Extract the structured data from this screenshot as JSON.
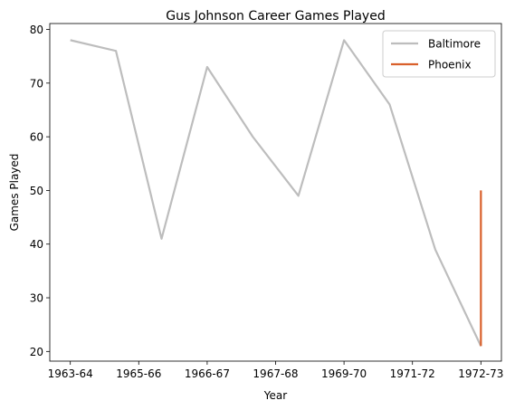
{
  "chart_data": {
    "type": "line",
    "title": "Gus Johnson  Career Games Played",
    "xlabel": "Year",
    "ylabel": "Games Played",
    "x": [
      0,
      1,
      2,
      3,
      4,
      5,
      6,
      7,
      8,
      9
    ],
    "x_tick_positions": [
      0,
      1.5,
      3,
      4.5,
      6,
      7.5,
      9
    ],
    "x_tick_labels": [
      "1963-64",
      "1965-66",
      "1966-67",
      "1967-68",
      "1969-70",
      "1971-72",
      "1972-73"
    ],
    "xlim": [
      -0.45,
      9.45
    ],
    "ylim": [
      18.2,
      81.1
    ],
    "y_ticks": [
      20,
      30,
      40,
      50,
      60,
      70,
      80
    ],
    "grid": false,
    "legend_position": "top-right",
    "series": [
      {
        "name": "Baltimore",
        "color": "#bdbdbd",
        "points": [
          [
            0,
            78
          ],
          [
            1,
            76
          ],
          [
            2,
            41
          ],
          [
            3,
            73
          ],
          [
            4,
            60
          ],
          [
            5,
            49
          ],
          [
            6,
            78
          ],
          [
            7,
            66
          ],
          [
            8,
            39
          ],
          [
            9,
            21
          ]
        ]
      },
      {
        "name": "Phoenix",
        "color": "#d9602b",
        "points": [
          [
            9,
            21
          ],
          [
            9,
            50
          ]
        ]
      }
    ]
  }
}
